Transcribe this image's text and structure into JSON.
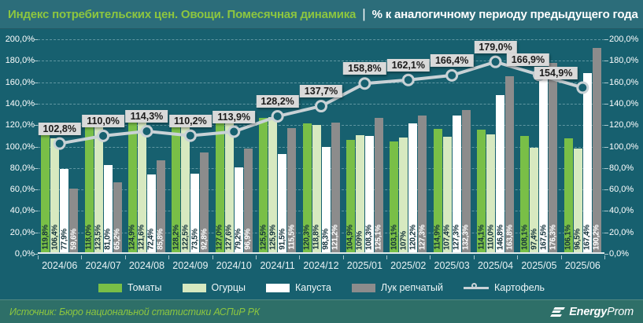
{
  "header": {
    "title": "Индекс потребительских цен. Овощи. Помесячная динамика",
    "separator": "|",
    "subtitle": "% к аналогичному периоду предыдущего года"
  },
  "colors": {
    "background": "#17606f",
    "titlebar_bg": "#2c6d7a",
    "footer_bg": "#2e6f68",
    "accent_green": "#8dc63f",
    "line_label_bg": "#d9d9d9",
    "grid": "#aacdd5",
    "axis_text": "#ffffff"
  },
  "chart_data": {
    "type": "bar",
    "title": "Индекс потребительских цен. Овощи. Помесячная динамика",
    "subtitle": "% к аналогичному периоду предыдущего года",
    "categories": [
      "2024/06",
      "2024/07",
      "2024/08",
      "2024/09",
      "2024/10",
      "2024/11",
      "2024/12",
      "2025/01",
      "2025/02",
      "2025/03",
      "2025/04",
      "2025/05",
      "2025/06"
    ],
    "series": [
      {
        "name": "Томаты",
        "type": "bar",
        "color": "#79bf47",
        "label_color": "#14333c",
        "values": [
          119.8,
          118.0,
          124.9,
          128.2,
          127.0,
          125.5,
          120.3,
          104.9,
          103.1,
          114.9,
          114.1,
          108.1,
          106.1
        ],
        "labels": [
          "119,8%",
          "118,0%",
          "124,9%",
          "128,2%",
          "127,0%",
          "125,5%",
          "120,3%",
          "104,9%",
          "103,1%",
          "114,9%",
          "114,1%",
          "108,1%",
          "106,1%"
        ]
      },
      {
        "name": "Огурцы",
        "type": "bar",
        "color": "#d7e9c0",
        "label_color": "#14333c",
        "values": [
          106.4,
          123.5,
          121.6,
          122.5,
          127.6,
          125.9,
          118.8,
          109.0,
          107.0,
          107.4,
          110.0,
          97.4,
          96.5
        ],
        "labels": [
          "106,4%",
          "123,5%",
          "121,6%",
          "122,5%",
          "127,6%",
          "125,9%",
          "118,8%",
          "109%",
          "107%",
          "107,4%",
          "110,0%",
          "97,4%",
          "96,5%"
        ]
      },
      {
        "name": "Капуста",
        "type": "bar",
        "color": "#ffffff",
        "label_color": "#14333c",
        "values": [
          77.9,
          81.0,
          72.4,
          73.5,
          79.2,
          91.5,
          98.3,
          108.3,
          120.2,
          127.3,
          146.8,
          167.5,
          167.4
        ],
        "labels": [
          "77,9%",
          "81,0%",
          "72,4%",
          "73,5%",
          "79,2%",
          "91,5%",
          "98,3%",
          "108,3%",
          "120,2%",
          "127,3%",
          "146,8%",
          "167,5%",
          "167,4%"
        ]
      },
      {
        "name": "Лук репчатый",
        "type": "bar",
        "color": "#8c8c8c",
        "label_color": "#ffffff",
        "values": [
          59.6,
          65.2,
          85.8,
          92.8,
          96.9,
          115.5,
          121.2,
          125.1,
          127.3,
          132.3,
          163.8,
          176.3,
          190.2
        ],
        "labels": [
          "59,6%",
          "65,2%",
          "85,8%",
          "92,8%",
          "96,9%",
          "115,5%",
          "121,2%",
          "125,1%",
          "127,3%",
          "132,3%",
          "163,8%",
          "176,3%",
          "190,2%"
        ]
      },
      {
        "name": "Картофель",
        "type": "line",
        "color": "#c9d2d6",
        "label_color": "#1b1b1b",
        "values": [
          102.8,
          110.0,
          114.3,
          110.2,
          113.9,
          128.2,
          137.7,
          158.8,
          162.1,
          166.4,
          179.0,
          166.9,
          154.9
        ],
        "labels": [
          "102,8%",
          "110,0%",
          "114,3%",
          "110,2%",
          "113,9%",
          "128,2%",
          "137,7%",
          "158,8%",
          "162,1%",
          "166,4%",
          "179,0%",
          "166,9%",
          "154,9%"
        ]
      }
    ],
    "y_axis": {
      "min": 0,
      "max": 200,
      "step": 20,
      "sides": "both",
      "tick_labels": [
        "0,0%",
        "20,0%",
        "40,0%",
        "60,0%",
        "80,0%",
        "100,0%",
        "120,0%",
        "140,0%",
        "160,0%",
        "180,0%",
        "200,0%"
      ]
    },
    "grid": "horizontal dashed",
    "legend_position": "bottom"
  },
  "footer": {
    "source": "Источник: Бюро национальной статистики АСПиР РК",
    "logo_bold": "Energy",
    "logo_regular": "Prom"
  }
}
